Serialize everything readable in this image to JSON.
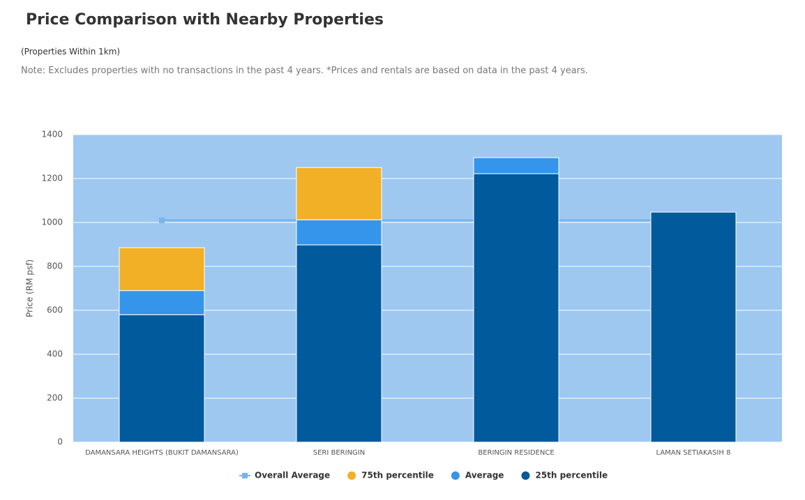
{
  "chart_data": {
    "type": "stacked-bar",
    "title": "Price Comparison with Nearby Properties",
    "subtitle": "(Properties Within 1km)",
    "note": "Note: Excludes properties with no transactions in the past 4 years. *Prices and rentals are based on data in the past 4 years.",
    "y_label": "Price (RM psf)",
    "categories": [
      "DAMANSARA HEIGHTS (BUKIT DAMANSARA)",
      "SERI BERINGIN",
      "BERINGIN RESIDENCE",
      "LAMAN SETIAKASIH 8"
    ],
    "series": [
      {
        "name": "Overall Average",
        "type": "line",
        "color": "#7ab3ec",
        "values": [
          1010,
          1010,
          1010,
          1010
        ]
      },
      {
        "name": "75th percentile",
        "color": "#f2b026",
        "values": [
          195,
          238,
          null,
          null
        ]
      },
      {
        "name": "Average",
        "color": "#3595eb",
        "values": [
          110,
          114,
          73,
          null
        ]
      },
      {
        "name": "25th percentile",
        "color": "#005a9b",
        "values": [
          580,
          898,
          1222,
          1047
        ]
      }
    ],
    "ylim": [
      0,
      1400
    ],
    "yticks": [
      0,
      200,
      400,
      600,
      800,
      1000,
      1200,
      1400
    ],
    "grid": true,
    "plot_background": "#9ec8f0",
    "legend": "bottom"
  }
}
